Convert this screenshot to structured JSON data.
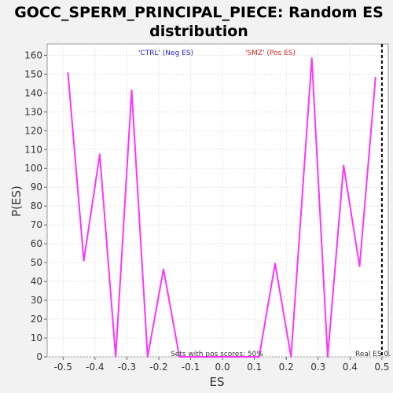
{
  "chart_data": {
    "type": "line",
    "title_line1": "GOCC_SPERM_PRINCIPAL_PIECE: Random ES",
    "title_line2": "distribution",
    "xlabel": "ES",
    "ylabel": "P(ES)",
    "xlim": [
      -0.55,
      0.52
    ],
    "ylim": [
      0,
      166
    ],
    "x_ticks": [
      -0.5,
      -0.4,
      -0.3,
      -0.2,
      -0.1,
      0.0,
      0.1,
      0.2,
      0.3,
      0.4,
      0.5
    ],
    "x_tick_labels": [
      "-0.5",
      "-0.4",
      "-0.3",
      "-0.2",
      "-0.1",
      "0.0",
      "0.1",
      "0.2",
      "0.3",
      "0.4",
      "0.5"
    ],
    "y_ticks": [
      0,
      10,
      20,
      30,
      40,
      50,
      60,
      70,
      80,
      90,
      100,
      110,
      120,
      130,
      140,
      150,
      160
    ],
    "y_tick_labels": [
      "0",
      "10",
      "20",
      "30",
      "40",
      "50",
      "60",
      "70",
      "80",
      "90",
      "100",
      "110",
      "120",
      "130",
      "140",
      "150",
      "160"
    ],
    "grid": true,
    "series": [
      {
        "color": "#ff33ff",
        "x": [
          -0.485,
          -0.435,
          -0.385,
          -0.335,
          -0.285,
          -0.235,
          -0.185,
          -0.135,
          -0.085,
          -0.035,
          0.015,
          0.065,
          0.115,
          0.165,
          0.215,
          0.28,
          0.33,
          0.38,
          0.43,
          0.48
        ],
        "y": [
          151,
          51,
          107.5,
          0,
          141.5,
          0,
          46.5,
          0,
          0,
          0,
          0,
          0,
          0,
          49.5,
          0,
          158.5,
          0,
          101.5,
          48,
          148.5
        ]
      }
    ],
    "legend": [
      {
        "label": "'CTRL' (Neg ES)",
        "color": "#2222cc"
      },
      {
        "label": "'SMZ' (Pos ES)",
        "color": "#dd2222"
      }
    ],
    "annotations": {
      "sets_text": "Sets with pos scores: 50%",
      "real_es_text": "Real ES 0.",
      "real_es_x": 0.5
    }
  }
}
